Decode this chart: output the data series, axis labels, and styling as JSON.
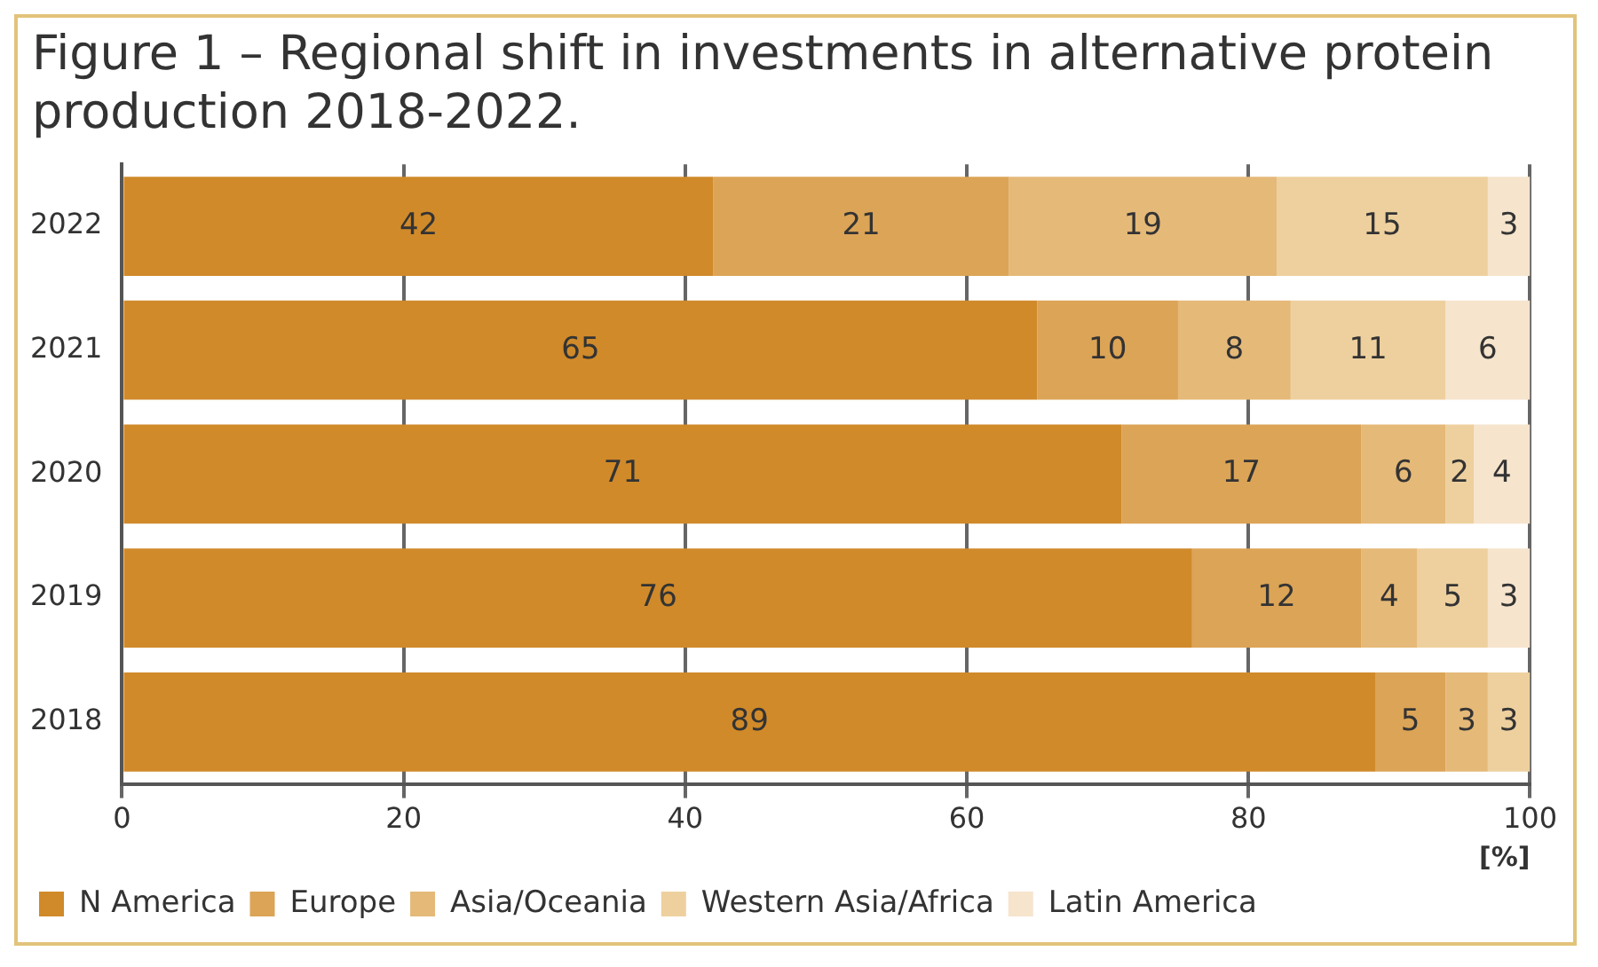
{
  "chart_data": {
    "type": "bar",
    "title": "Figure 1 – Regional shift in investments in alternative protein production 2018-2022.",
    "orientation": "horizontal",
    "stacked": true,
    "categories": [
      "2022",
      "2021",
      "2020",
      "2019",
      "2018"
    ],
    "series": [
      {
        "name": "N America",
        "color": "#d08a2a",
        "values": [
          42,
          65,
          71,
          76,
          89
        ]
      },
      {
        "name": "Europe",
        "color": "#dca456",
        "values": [
          21,
          10,
          17,
          12,
          5
        ]
      },
      {
        "name": "Asia/Oceania",
        "color": "#e5b978",
        "values": [
          19,
          8,
          6,
          4,
          3
        ]
      },
      {
        "name": "Western Asia/Africa",
        "color": "#eed09e",
        "values": [
          15,
          11,
          2,
          5,
          3
        ]
      },
      {
        "name": "Latin America",
        "color": "#f6e4cc",
        "values": [
          3,
          6,
          4,
          3,
          null
        ]
      }
    ],
    "xlim": [
      0,
      100
    ],
    "xticks": [
      0,
      20,
      40,
      60,
      80,
      100
    ],
    "xlabel": "[%]",
    "grid": "x",
    "legend": "bottom",
    "data_labels": true
  }
}
